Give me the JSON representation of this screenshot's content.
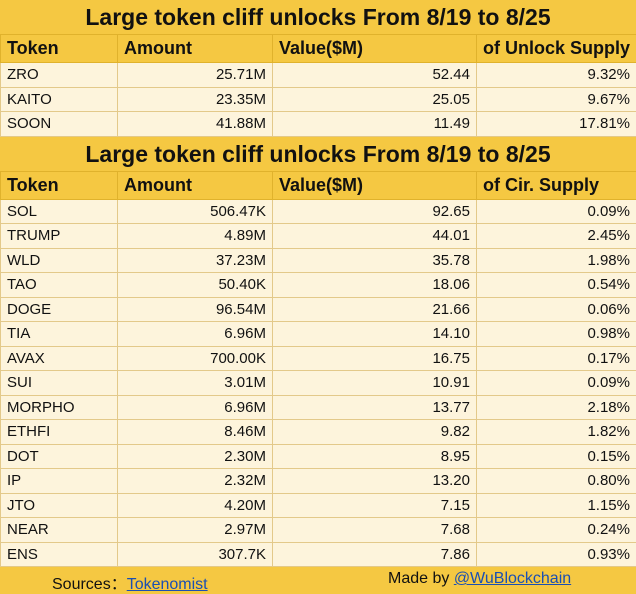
{
  "section1": {
    "title": "Large token cliff unlocks From  8/19 to 8/25",
    "headers": [
      "Token",
      "Amount",
      "Value($M)",
      "of Unlock Supply"
    ],
    "rows": [
      [
        "ZRO",
        "25.71M",
        "52.44",
        "9.32%"
      ],
      [
        "KAITO",
        "23.35M",
        "25.05",
        "9.67%"
      ],
      [
        "SOON",
        "41.88M",
        "11.49",
        "17.81%"
      ]
    ]
  },
  "section2": {
    "title": "Large token cliff unlocks From  8/19 to 8/25",
    "headers": [
      "Token",
      "Amount",
      "Value($M)",
      "of Cir. Supply"
    ],
    "rows": [
      [
        "SOL",
        "506.47K",
        "92.65",
        "0.09%"
      ],
      [
        "TRUMP",
        "4.89M",
        "44.01",
        "2.45%"
      ],
      [
        "WLD",
        "37.23M",
        "35.78",
        "1.98%"
      ],
      [
        "TAO",
        "50.40K",
        "18.06",
        "0.54%"
      ],
      [
        "DOGE",
        "96.54M",
        "21.66",
        "0.06%"
      ],
      [
        "TIA",
        "6.96M",
        "14.10",
        "0.98%"
      ],
      [
        "AVAX",
        "700.00K",
        "16.75",
        "0.17%"
      ],
      [
        "SUI",
        "3.01M",
        "10.91",
        "0.09%"
      ],
      [
        "MORPHO",
        "6.96M",
        "13.77",
        "2.18%"
      ],
      [
        "ETHFI",
        "8.46M",
        "9.82",
        "1.82%"
      ],
      [
        "DOT",
        "2.30M",
        "8.95",
        "0.15%"
      ],
      [
        "IP",
        "2.32M",
        "13.20",
        "0.80%"
      ],
      [
        "JTO",
        "4.20M",
        "7.15",
        "1.15%"
      ],
      [
        "NEAR",
        "2.97M",
        "7.68",
        "0.24%"
      ],
      [
        "ENS",
        "307.7K",
        "7.86",
        "0.93%"
      ]
    ]
  },
  "footer": {
    "sources_label": "Sources：",
    "sources_link": "Tokenomist",
    "made_by_label": "Made by ",
    "made_by_link": "@WuBlockchain"
  },
  "colors": {
    "header_bg": "#f5c842",
    "cell_bg": "#fdf4dc",
    "link": "#1a4fb3"
  }
}
